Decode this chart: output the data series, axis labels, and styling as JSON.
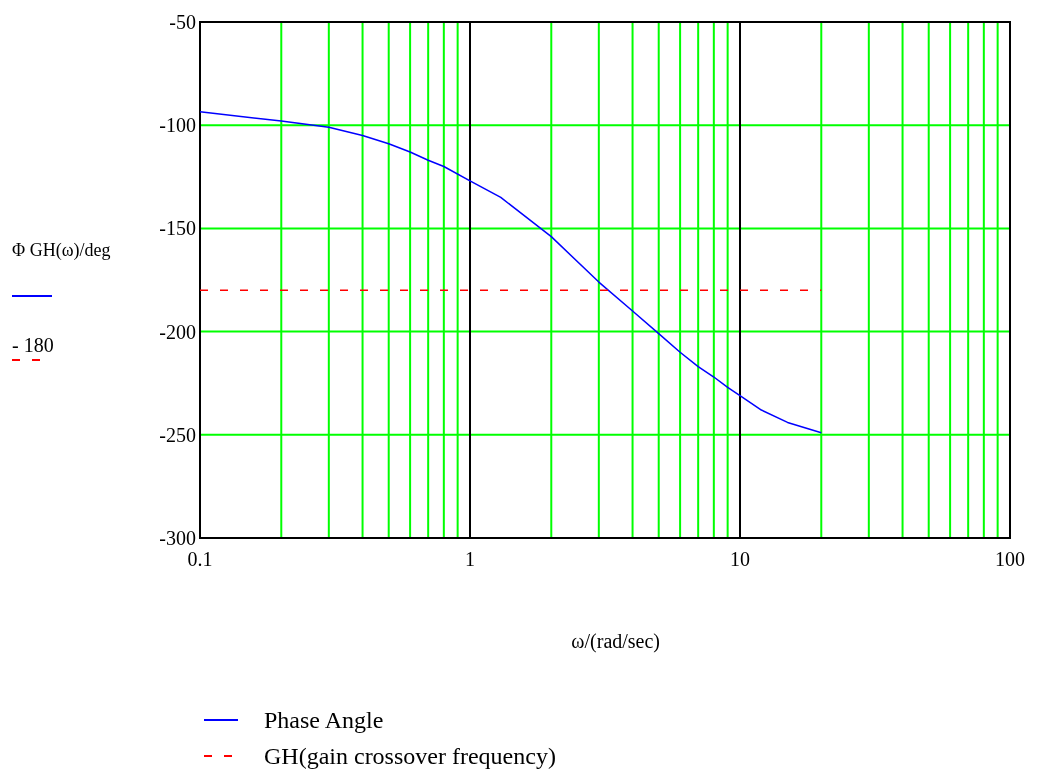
{
  "chart_data": {
    "type": "line",
    "xlabel": "ω/(rad/sec)",
    "ylabel": "Φ GH(ω)/deg",
    "annotations": [
      "- 180"
    ],
    "log": "x",
    "grid": true,
    "legend": "bottom",
    "line_style": "solid",
    "marker": "none",
    "xlim": [
      0.1,
      100
    ],
    "ylim": [
      -300,
      -50
    ],
    "xticks": [
      0.1,
      {
        "value": 0.2,
        "label": null
      },
      {
        "value": 0.3,
        "label": null
      },
      {
        "value": 0.4,
        "label": null
      },
      {
        "value": 0.5,
        "label": null
      },
      {
        "value": 0.6,
        "label": null
      },
      {
        "value": 0.7,
        "label": null
      },
      {
        "value": 0.8,
        "label": null
      },
      {
        "value": 0.9,
        "label": null
      },
      1,
      {
        "value": 2,
        "label": null
      },
      {
        "value": 3,
        "label": null
      },
      {
        "value": 4,
        "label": null
      },
      {
        "value": 5,
        "label": null
      },
      {
        "value": 6,
        "label": null
      },
      {
        "value": 7,
        "label": null
      },
      {
        "value": 8,
        "label": null
      },
      {
        "value": 9,
        "label": null
      },
      10,
      {
        "value": 20,
        "label": null
      },
      {
        "value": 30,
        "label": null
      },
      {
        "value": 40,
        "label": null
      },
      {
        "value": 50,
        "label": null
      },
      {
        "value": 60,
        "label": null
      },
      {
        "value": 70,
        "label": null
      },
      {
        "value": 80,
        "label": null
      },
      {
        "value": 90,
        "label": null
      },
      100
    ],
    "yticks": [
      -300,
      -250,
      -200,
      -150,
      -100,
      -50
    ],
    "series": [
      {
        "name": "Phase Angle",
        "color": "#0000ff",
        "x": [
          0.1,
          0.2,
          0.3,
          0.4,
          0.5,
          0.6,
          0.7,
          0.8,
          1,
          1.3,
          2,
          3,
          4,
          5,
          6,
          7,
          8,
          9,
          10,
          12,
          15,
          20
        ],
        "values": [
          -93.5,
          -98,
          -101,
          -105,
          -109,
          -113,
          -117,
          -120,
          -127,
          -135,
          -154,
          -176,
          -190,
          -201,
          -210,
          -217,
          -222,
          -227,
          -231,
          -238,
          -244,
          -249
        ]
      },
      {
        "name": "GH(gain crossover frequency)",
        "color": "#ff0000",
        "line_style": "dashed",
        "x": [
          0.1,
          20
        ],
        "values": [
          -180,
          -180
        ]
      }
    ]
  }
}
